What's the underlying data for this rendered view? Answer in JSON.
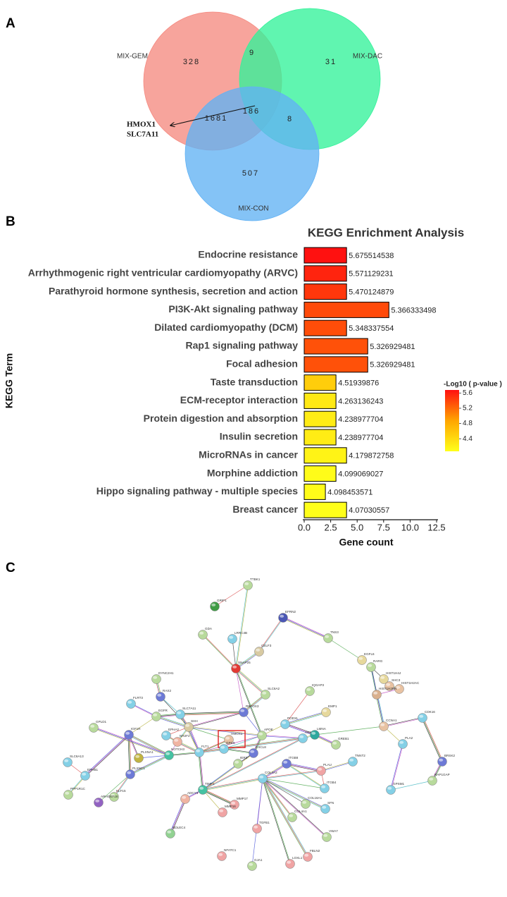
{
  "panel_labels": [
    "A",
    "B",
    "C"
  ],
  "venn": {
    "sets": [
      {
        "name": "MIX-GEM",
        "color": "#f58a80"
      },
      {
        "name": "MIX-DAC",
        "color": "#33f29a"
      },
      {
        "name": "MIX-CON",
        "color": "#62b2f4"
      }
    ],
    "regions": [
      {
        "sets": "MIX-GEM",
        "value": 328
      },
      {
        "sets": "MIX-GEM MIX-DAC",
        "value": 9
      },
      {
        "sets": "MIX-DAC",
        "value": 31
      },
      {
        "sets": "MIX-GEM MIX-DAC MIX-CON",
        "value": 186
      },
      {
        "sets": "MIX-GEM MIX-CON",
        "value": 1681
      },
      {
        "sets": "MIX-DAC MIX-CON",
        "value": 8
      },
      {
        "sets": "MIX-CON",
        "value": 507
      }
    ],
    "annotation": [
      "HMOX1",
      "SLC7A11"
    ]
  },
  "chart_data": {
    "type": "bar",
    "orientation": "horizontal",
    "title": "KEGG Enrichment Analysis",
    "xlabel": "Gene count",
    "ylabel": "KEGG Term",
    "categories": [
      "Endocrine resistance",
      "Arrhythmogenic right ventricular cardiomyopathy (ARVC)",
      "Parathyroid hormone synthesis, secretion and action",
      "PI3K-Akt signaling pathway",
      "Dilated cardiomyopathy (DCM)",
      "Rap1 signaling pathway",
      "Focal adhesion",
      "Taste transduction",
      "ECM-receptor interaction",
      "Protein digestion and absorption",
      "Insulin secretion",
      "MicroRNAs in cancer",
      "Morphine addiction",
      "Hippo signaling pathway - multiple species",
      "Breast cancer"
    ],
    "values": [
      4,
      4,
      4,
      8,
      4,
      6,
      6,
      3,
      3,
      3,
      3,
      4,
      3,
      2,
      4
    ],
    "pvalues": [
      5.675514538,
      5.571129231,
      5.470124879,
      5.366333498,
      5.348337554,
      5.326929481,
      5.326929481,
      4.51939876,
      4.263136243,
      4.238977704,
      4.238977704,
      4.179872758,
      4.099069027,
      4.098453571,
      4.07030557
    ],
    "xlim": [
      0,
      12.5
    ],
    "xticks": [
      {
        "value": 0,
        "label": "0.0"
      },
      2.5,
      {
        "value": 5,
        "label": "5.0"
      },
      7.5,
      {
        "value": 10,
        "label": "10.0"
      },
      12.5
    ],
    "colorbar": {
      "title": "-Log10 ( p-value )",
      "clim": [
        4.07,
        5.68
      ],
      "ticks": [
        5.6,
        5.2,
        4.8,
        4.4
      ],
      "colors": [
        "#ffff1a",
        "#ffa500",
        "#ff1010"
      ]
    }
  },
  "network": {
    "nodes": [
      {
        "label": "GRIP1",
        "color": "#3f9c45"
      },
      {
        "label": "TTBK1",
        "color": "#b8da9c"
      },
      {
        "label": "EFRN2",
        "color": "#4b57b5"
      },
      {
        "label": "TNS3",
        "color": "#b8da9c"
      },
      {
        "label": "EGFL6",
        "color": "#e6d89c"
      },
      {
        "label": "GDA",
        "color": "#b8da9c"
      },
      {
        "label": "LRRC4B",
        "color": "#84d0e6"
      },
      {
        "label": "CELF3",
        "color": "#d8caa2"
      },
      {
        "label": "SNAP25",
        "color": "#e33a34"
      },
      {
        "label": "SLC6A2",
        "color": "#b8da9c"
      },
      {
        "label": "RBFOX3",
        "color": "#6d7ad6"
      },
      {
        "label": "IQGAP3",
        "color": "#b8da9c"
      },
      {
        "label": "EMP1",
        "color": "#e6d89c"
      },
      {
        "label": "PODXL",
        "color": "#84d0e6"
      },
      {
        "label": "APOE",
        "color": "#b8da9c"
      },
      {
        "label": "ANXA1",
        "color": "#84d0e6"
      },
      {
        "label": "LMNA",
        "color": "#2fa89e"
      },
      {
        "label": "GREB1",
        "color": "#b8da9c"
      },
      {
        "label": "RARG",
        "color": "#b8da9c"
      },
      {
        "label": "HIST1H4J",
        "color": "#e6d89c"
      },
      {
        "label": "SHC3",
        "color": "#e8c2a2"
      },
      {
        "label": "HIST1H2AC",
        "color": "#e8c2a2"
      },
      {
        "label": "HIST1H2BN",
        "color": "#d9b08e"
      },
      {
        "label": "CCNA1",
        "color": "#e8c2a2"
      },
      {
        "label": "CDK16",
        "color": "#84d0e6"
      },
      {
        "label": "PLA2",
        "color": "#84d0e6"
      },
      {
        "label": "BRSK2",
        "color": "#6d7ad6"
      },
      {
        "label": "RAP1GAP",
        "color": "#b8da9c"
      },
      {
        "label": "GPSM1",
        "color": "#84d0e6"
      },
      {
        "label": "TNNT2",
        "color": "#84d0e6"
      },
      {
        "label": "PLAU",
        "color": "#f0a4a4"
      },
      {
        "label": "ITGB8",
        "color": "#6d7ad6"
      },
      {
        "label": "ITGB4",
        "color": "#84d0e6"
      },
      {
        "label": "SFN",
        "color": "#84d0e6"
      },
      {
        "label": "COL16A1",
        "color": "#b8da9c"
      },
      {
        "label": "COL4A1",
        "color": "#b8da9c"
      },
      {
        "label": "COL4A2",
        "color": "#84d0e6"
      },
      {
        "label": "CXCL8",
        "color": "#6d7ad6"
      },
      {
        "label": "IER3",
        "color": "#b8da9c"
      },
      {
        "label": "TIMP1",
        "color": "#45c2a2"
      },
      {
        "label": "MMP17",
        "color": "#f0a4a4"
      },
      {
        "label": "MMP16",
        "color": "#f0a4a4"
      },
      {
        "label": "ADCY3",
        "color": "#f0b4a2"
      },
      {
        "label": "NDLEC4",
        "color": "#92d292"
      },
      {
        "label": "TGFB1",
        "color": "#f0a4a4"
      },
      {
        "label": "NFATC1",
        "color": "#f0a4a4"
      },
      {
        "label": "GJA1",
        "color": "#b8da9c"
      },
      {
        "label": "LOXL1",
        "color": "#f0a4a4"
      },
      {
        "label": "FBLN2",
        "color": "#f0a4a4"
      },
      {
        "label": "VWA7",
        "color": "#b8da9c"
      },
      {
        "label": "SHH",
        "color": "#d8caa2"
      },
      {
        "label": "EPHA2",
        "color": "#84d0e6"
      },
      {
        "label": "NR2F2",
        "color": "#f0b4a2"
      },
      {
        "label": "FLT1",
        "color": "#84d0e6"
      },
      {
        "label": "NOTCH3",
        "color": "#45c2a2"
      },
      {
        "label": "RAX2",
        "color": "#6d7ad6"
      },
      {
        "label": "FLRT3",
        "color": "#84d0e6"
      },
      {
        "label": "DYNC2H1",
        "color": "#b8da9c"
      },
      {
        "label": "EGFR",
        "color": "#b8da9c"
      },
      {
        "label": "SLC7A11",
        "color": "#84d0e6"
      },
      {
        "label": "HMOX1",
        "color": "#e8c2a2"
      },
      {
        "label": "GPC6",
        "color": "#84d0e6"
      },
      {
        "label": "IGF1R",
        "color": "#6d7ad6"
      },
      {
        "label": "PLXNA1",
        "color": "#c2b442"
      },
      {
        "label": "PLXNC1",
        "color": "#6d7ad6"
      },
      {
        "label": "KLF15",
        "color": "#b8da9c"
      },
      {
        "label": "ARHGEF16",
        "color": "#9262c2"
      },
      {
        "label": "GPLD1",
        "color": "#b8da9c"
      },
      {
        "label": "SLC6A13",
        "color": "#84d0e6"
      },
      {
        "label": "EPHB1",
        "color": "#84d0e6"
      },
      {
        "label": "PPP1R1C",
        "color": "#b8da9c"
      }
    ]
  }
}
